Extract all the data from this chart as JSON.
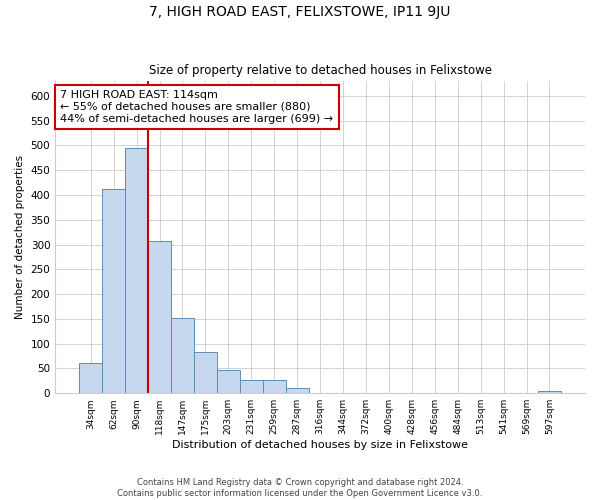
{
  "title": "7, HIGH ROAD EAST, FELIXSTOWE, IP11 9JU",
  "subtitle": "Size of property relative to detached houses in Felixstowe",
  "xlabel": "Distribution of detached houses by size in Felixstowe",
  "ylabel": "Number of detached properties",
  "bin_labels": [
    "34sqm",
    "62sqm",
    "90sqm",
    "118sqm",
    "147sqm",
    "175sqm",
    "203sqm",
    "231sqm",
    "259sqm",
    "287sqm",
    "316sqm",
    "344sqm",
    "372sqm",
    "400sqm",
    "428sqm",
    "456sqm",
    "484sqm",
    "513sqm",
    "541sqm",
    "569sqm",
    "597sqm"
  ],
  "bar_heights": [
    60,
    412,
    494,
    308,
    152,
    83,
    46,
    27,
    27,
    11,
    0,
    0,
    0,
    0,
    0,
    0,
    0,
    0,
    0,
    0,
    5
  ],
  "bar_color": "#c5d8ee",
  "bar_edge_color": "#5b8db8",
  "vline_x_index": 3,
  "vline_color": "#cc0000",
  "annotation_text": "7 HIGH ROAD EAST: 114sqm\n← 55% of detached houses are smaller (880)\n44% of semi-detached houses are larger (699) →",
  "annotation_box_color": "#ffffff",
  "annotation_box_edge": "#cc0000",
  "ylim": [
    0,
    630
  ],
  "yticks": [
    0,
    50,
    100,
    150,
    200,
    250,
    300,
    350,
    400,
    450,
    500,
    550,
    600
  ],
  "footer_line1": "Contains HM Land Registry data © Crown copyright and database right 2024.",
  "footer_line2": "Contains public sector information licensed under the Open Government Licence v3.0.",
  "background_color": "#ffffff",
  "grid_color": "#cccccc"
}
